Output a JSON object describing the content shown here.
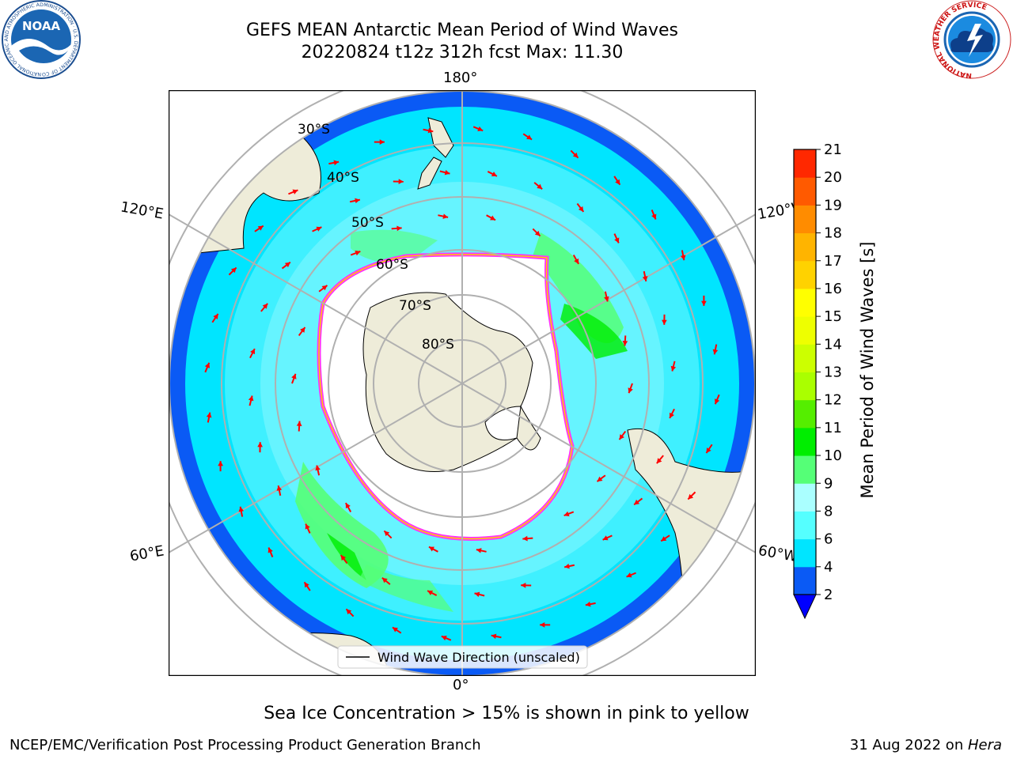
{
  "header": {
    "title_line1": "GEFS MEAN Antarctic Mean Period of Wind Waves",
    "title_line2": "20220824 t12z 312h fcst   Max: 11.30"
  },
  "logos": {
    "noaa_text": "NOAA",
    "noaa_ring_text": "NATIONAL OCEANIC AND ATMOSPHERIC ADMINISTRATION · U.S. DEPARTMENT OF COMMERCE",
    "nws_ring_text": "NATIONAL WEATHER SERVICE"
  },
  "map": {
    "longitude_labels": {
      "top": "180°",
      "bottom": "0°",
      "upper_left": "120°E",
      "upper_right": "120°W",
      "lower_left": "60°E",
      "lower_right": "60°W"
    },
    "latitude_labels": [
      "30°S",
      "40°S",
      "50°S",
      "60°S",
      "70°S",
      "80°S"
    ],
    "legend_label": "Wind Wave Direction (unscaled)",
    "colors": {
      "land": "#eeecd9",
      "sea_ice": "#ffffff",
      "ice_edge": "#ff33ff",
      "arrow": "#ff0000",
      "grid": "#b0b0b0"
    }
  },
  "colorbar": {
    "label": "Mean Period of Wind Waves [s]",
    "ticks": [
      "2",
      "4",
      "6",
      "8",
      "9",
      "10",
      "11",
      "12",
      "13",
      "14",
      "15",
      "16",
      "17",
      "18",
      "19",
      "20",
      "21"
    ],
    "colors": [
      "#0a5af5",
      "#00e5ff",
      "#55ffff",
      "#aaffff",
      "#55ff77",
      "#00ee00",
      "#55ee00",
      "#aaff00",
      "#ccff00",
      "#eeff00",
      "#ffff00",
      "#ffd200",
      "#ffb400",
      "#ff8c00",
      "#ff5a00",
      "#ff2800"
    ],
    "extend_color": "#0000ff"
  },
  "caption": "Sea Ice Concentration > 15% is shown in pink to yellow",
  "footer": {
    "left": "NCEP/EMC/Verification Post Processing Product Generation Branch",
    "right_prefix": "31 Aug 2022 on ",
    "right_italic": "Hera"
  }
}
